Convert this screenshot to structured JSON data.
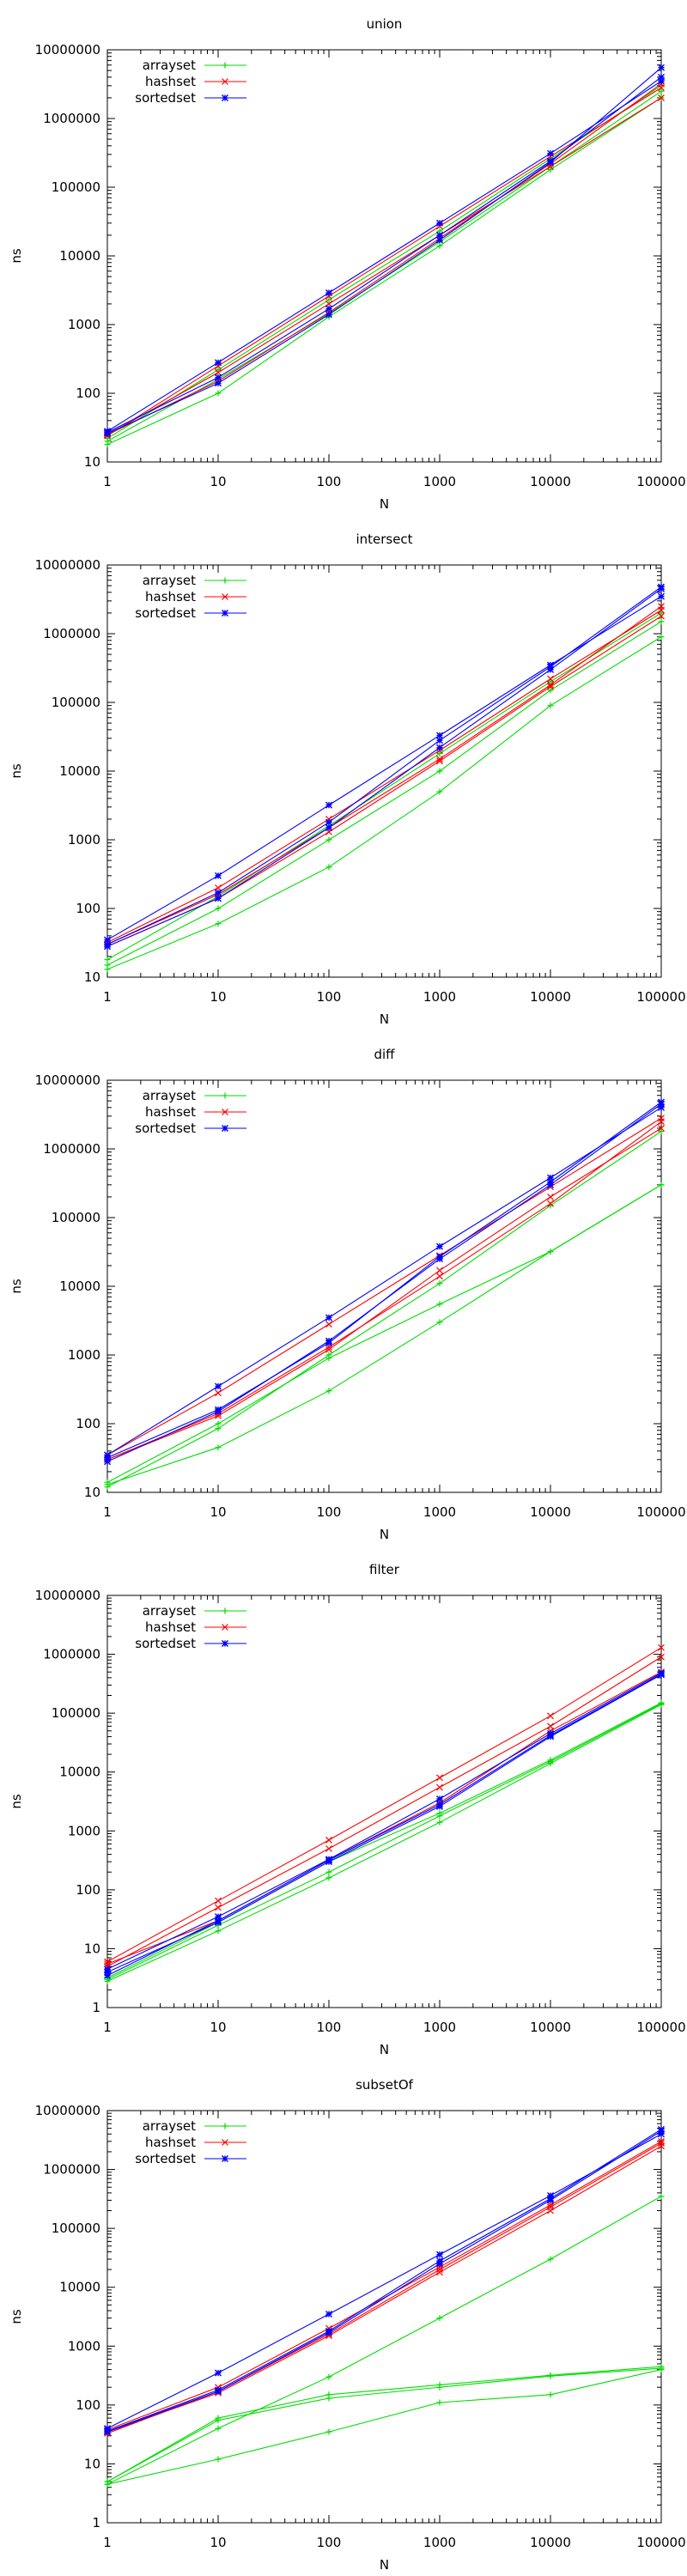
{
  "chart_data": [
    {
      "type": "line",
      "title": "union",
      "xlabel": "N",
      "ylabel": "ns",
      "x_scale": "log",
      "y_scale": "log",
      "xlim": [
        1,
        100000
      ],
      "ylim": [
        10,
        10000000
      ],
      "x_ticks": [
        "1",
        "10",
        "100",
        "1000",
        "10000",
        "100000"
      ],
      "y_ticks": [
        "10",
        "100",
        "1000",
        "10000",
        "100000",
        "1000000",
        "10000000"
      ],
      "legend_position": "top-left",
      "x": [
        1,
        10,
        100,
        1000,
        10000,
        100000
      ],
      "series": [
        {
          "name": "arrayset",
          "color": "#00dd00",
          "marker": "+",
          "values": [
            20,
            160,
            1450,
            16000,
            200000,
            2500000
          ]
        },
        {
          "name": "",
          "color": "#00dd00",
          "marker": "+",
          "values": [
            18,
            100,
            1300,
            14000,
            180000,
            2000000
          ]
        },
        {
          "name": "",
          "color": "#00dd00",
          "marker": "+",
          "values": [
            22,
            220,
            2300,
            23000,
            260000,
            3000000
          ]
        },
        {
          "name": "hashset",
          "color": "#ff0000",
          "marker": "x",
          "values": [
            25,
            150,
            1500,
            18000,
            220000,
            3200000
          ]
        },
        {
          "name": "",
          "color": "#ff0000",
          "marker": "x",
          "values": [
            24,
            250,
            2600,
            27000,
            280000,
            2800000
          ]
        },
        {
          "name": "",
          "color": "#ff0000",
          "marker": "x",
          "values": [
            25,
            200,
            2000,
            20000,
            200000,
            2000000
          ]
        },
        {
          "name": "sortedset",
          "color": "#0000ff",
          "marker": "*",
          "values": [
            27,
            170,
            1700,
            20000,
            240000,
            4000000
          ]
        },
        {
          "name": "",
          "color": "#0000ff",
          "marker": "*",
          "values": [
            28,
            280,
            2900,
            30000,
            310000,
            3500000
          ]
        },
        {
          "name": "",
          "color": "#0000ff",
          "marker": "*",
          "values": [
            26,
            140,
            1400,
            17000,
            230000,
            5500000
          ]
        }
      ]
    },
    {
      "type": "line",
      "title": "intersect",
      "xlabel": "N",
      "ylabel": "ns",
      "x_scale": "log",
      "y_scale": "log",
      "xlim": [
        1,
        100000
      ],
      "ylim": [
        10,
        10000000
      ],
      "x_ticks": [
        "1",
        "10",
        "100",
        "1000",
        "10000",
        "100000"
      ],
      "y_ticks": [
        "10",
        "100",
        "1000",
        "10000",
        "100000",
        "1000000",
        "10000000"
      ],
      "legend_position": "top-left",
      "x": [
        1,
        10,
        100,
        1000,
        10000,
        100000
      ],
      "series": [
        {
          "name": "arrayset",
          "color": "#00dd00",
          "marker": "+",
          "values": [
            13,
            60,
            400,
            5000,
            90000,
            900000
          ]
        },
        {
          "name": "",
          "color": "#00dd00",
          "marker": "+",
          "values": [
            15,
            100,
            1000,
            10000,
            150000,
            1500000
          ]
        },
        {
          "name": "",
          "color": "#00dd00",
          "marker": "+",
          "values": [
            18,
            150,
            1600,
            18000,
            200000,
            2000000
          ]
        },
        {
          "name": "hashset",
          "color": "#ff0000",
          "marker": "x",
          "values": [
            30,
            160,
            1500,
            15000,
            180000,
            2500000
          ]
        },
        {
          "name": "",
          "color": "#ff0000",
          "marker": "x",
          "values": [
            32,
            200,
            2000,
            20000,
            220000,
            2200000
          ]
        },
        {
          "name": "",
          "color": "#ff0000",
          "marker": "x",
          "values": [
            28,
            140,
            1300,
            14000,
            170000,
            1800000
          ]
        },
        {
          "name": "sortedset",
          "color": "#0000ff",
          "marker": "*",
          "values": [
            28,
            140,
            1500,
            22000,
            300000,
            4500000
          ]
        },
        {
          "name": "",
          "color": "#0000ff",
          "marker": "*",
          "values": [
            35,
            300,
            3200,
            33000,
            350000,
            3500000
          ]
        },
        {
          "name": "",
          "color": "#0000ff",
          "marker": "*",
          "values": [
            30,
            170,
            1800,
            28000,
            330000,
            4800000
          ]
        }
      ]
    },
    {
      "type": "line",
      "title": "diff",
      "xlabel": "N",
      "ylabel": "ns",
      "x_scale": "log",
      "y_scale": "log",
      "xlim": [
        1,
        100000
      ],
      "ylim": [
        10,
        10000000
      ],
      "x_ticks": [
        "1",
        "10",
        "100",
        "1000",
        "10000",
        "100000"
      ],
      "y_ticks": [
        "10",
        "100",
        "1000",
        "10000",
        "100000",
        "1000000",
        "10000000"
      ],
      "legend_position": "top-left",
      "x": [
        1,
        10,
        100,
        1000,
        10000,
        100000
      ],
      "series": [
        {
          "name": "arrayset",
          "color": "#00dd00",
          "marker": "+",
          "values": [
            13,
            45,
            300,
            3000,
            32000,
            300000
          ]
        },
        {
          "name": "",
          "color": "#00dd00",
          "marker": "+",
          "values": [
            14,
            100,
            900,
            5500,
            32000,
            300000
          ]
        },
        {
          "name": "",
          "color": "#00dd00",
          "marker": "+",
          "values": [
            12,
            85,
            1000,
            11000,
            150000,
            1800000
          ]
        },
        {
          "name": "hashset",
          "color": "#ff0000",
          "marker": "x",
          "values": [
            30,
            140,
            1300,
            14000,
            160000,
            2500000
          ]
        },
        {
          "name": "",
          "color": "#ff0000",
          "marker": "x",
          "values": [
            35,
            280,
            2800,
            28000,
            280000,
            2800000
          ]
        },
        {
          "name": "",
          "color": "#ff0000",
          "marker": "x",
          "values": [
            30,
            130,
            1200,
            17000,
            200000,
            2000000
          ]
        },
        {
          "name": "sortedset",
          "color": "#0000ff",
          "marker": "*",
          "values": [
            28,
            150,
            1600,
            25000,
            300000,
            4500000
          ]
        },
        {
          "name": "",
          "color": "#0000ff",
          "marker": "*",
          "values": [
            35,
            350,
            3500,
            38000,
            380000,
            4000000
          ]
        },
        {
          "name": "",
          "color": "#0000ff",
          "marker": "*",
          "values": [
            32,
            160,
            1500,
            27000,
            330000,
            4800000
          ]
        }
      ]
    },
    {
      "type": "line",
      "title": "filter",
      "xlabel": "N",
      "ylabel": "ns",
      "x_scale": "log",
      "y_scale": "log",
      "xlim": [
        1,
        100000
      ],
      "ylim": [
        1,
        10000000
      ],
      "x_ticks": [
        "1",
        "10",
        "100",
        "1000",
        "10000",
        "100000"
      ],
      "y_ticks": [
        "1",
        "10",
        "100",
        "1000",
        "10000",
        "100000",
        "1000000",
        "10000000"
      ],
      "legend_position": "top-left",
      "x": [
        1,
        10,
        100,
        1000,
        10000,
        100000
      ],
      "series": [
        {
          "name": "arrayset",
          "color": "#00dd00",
          "marker": "+",
          "values": [
            2.8,
            20,
            160,
            1400,
            14000,
            140000
          ]
        },
        {
          "name": "",
          "color": "#00dd00",
          "marker": "+",
          "values": [
            3.2,
            28,
            300,
            2000,
            16000,
            150000
          ]
        },
        {
          "name": "",
          "color": "#00dd00",
          "marker": "+",
          "values": [
            3.0,
            25,
            200,
            1800,
            15000,
            145000
          ]
        },
        {
          "name": "hashset",
          "color": "#ff0000",
          "marker": "x",
          "values": [
            5,
            50,
            500,
            5500,
            60000,
            900000
          ]
        },
        {
          "name": "",
          "color": "#ff0000",
          "marker": "x",
          "values": [
            6,
            65,
            700,
            8000,
            90000,
            1300000
          ]
        },
        {
          "name": "",
          "color": "#ff0000",
          "marker": "x",
          "values": [
            5.5,
            30,
            320,
            3000,
            50000,
            500000
          ]
        },
        {
          "name": "sortedset",
          "color": "#0000ff",
          "marker": "*",
          "values": [
            4,
            28,
            300,
            2600,
            40000,
            450000
          ]
        },
        {
          "name": "",
          "color": "#0000ff",
          "marker": "*",
          "values": [
            4.5,
            35,
            330,
            3500,
            45000,
            480000
          ]
        },
        {
          "name": "",
          "color": "#0000ff",
          "marker": "*",
          "values": [
            3.5,
            30,
            320,
            2800,
            42000,
            460000
          ]
        }
      ]
    },
    {
      "type": "line",
      "title": "subsetOf",
      "xlabel": "N",
      "ylabel": "ns",
      "x_scale": "log",
      "y_scale": "log",
      "xlim": [
        1,
        100000
      ],
      "ylim": [
        1,
        10000000
      ],
      "x_ticks": [
        "1",
        "10",
        "100",
        "1000",
        "10000",
        "100000"
      ],
      "y_ticks": [
        "1",
        "10",
        "100",
        "1000",
        "10000",
        "100000",
        "1000000",
        "10000000"
      ],
      "legend_position": "top-left",
      "x": [
        1,
        10,
        100,
        1000,
        10000,
        100000
      ],
      "series": [
        {
          "name": "arrayset",
          "color": "#00dd00",
          "marker": "+",
          "values": [
            5,
            60,
            150,
            220,
            320,
            450
          ]
        },
        {
          "name": "",
          "color": "#00dd00",
          "marker": "+",
          "values": [
            4.5,
            40,
            300,
            3000,
            30000,
            350000
          ]
        },
        {
          "name": "",
          "color": "#00dd00",
          "marker": "+",
          "values": [
            4.5,
            12,
            35,
            110,
            150,
            400
          ]
        },
        {
          "name": "",
          "color": "#00dd00",
          "marker": "+",
          "values": [
            5,
            55,
            130,
            200,
            310,
            420
          ]
        },
        {
          "name": "hashset",
          "color": "#ff0000",
          "marker": "x",
          "values": [
            35,
            160,
            1500,
            18000,
            200000,
            2500000
          ]
        },
        {
          "name": "",
          "color": "#ff0000",
          "marker": "x",
          "values": [
            38,
            200,
            2000,
            22000,
            250000,
            3000000
          ]
        },
        {
          "name": "",
          "color": "#ff0000",
          "marker": "x",
          "values": [
            33,
            170,
            1600,
            20000,
            230000,
            2800000
          ]
        },
        {
          "name": "sortedset",
          "color": "#0000ff",
          "marker": "*",
          "values": [
            35,
            170,
            1700,
            25000,
            300000,
            4500000
          ]
        },
        {
          "name": "",
          "color": "#0000ff",
          "marker": "*",
          "values": [
            40,
            350,
            3500,
            36000,
            360000,
            4000000
          ]
        },
        {
          "name": "",
          "color": "#0000ff",
          "marker": "*",
          "values": [
            36,
            180,
            1800,
            28000,
            320000,
            4800000
          ]
        }
      ]
    }
  ]
}
